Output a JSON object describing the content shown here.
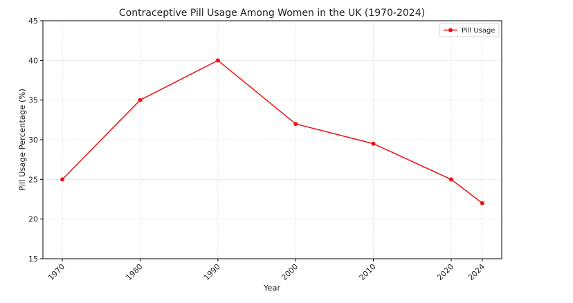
{
  "chart_data": {
    "type": "line",
    "title": "Contraceptive Pill Usage Among Women in the UK (1970-2024)",
    "xlabel": "Year",
    "ylabel": "Pill Usage Percentage (%)",
    "x": [
      1970,
      1980,
      1990,
      2000,
      2010,
      2020,
      2024
    ],
    "xticks": [
      "1970",
      "1980",
      "1990",
      "2000",
      "2010",
      "2020",
      "2024"
    ],
    "yticks": [
      "15",
      "20",
      "25",
      "30",
      "35",
      "40",
      "45"
    ],
    "ylim": [
      15,
      45
    ],
    "series": [
      {
        "name": "Pill Usage",
        "values": [
          25,
          35,
          40,
          32,
          29.5,
          25,
          22
        ],
        "color": "#ee1111"
      }
    ],
    "grid": true,
    "legend_position": "top-right"
  }
}
